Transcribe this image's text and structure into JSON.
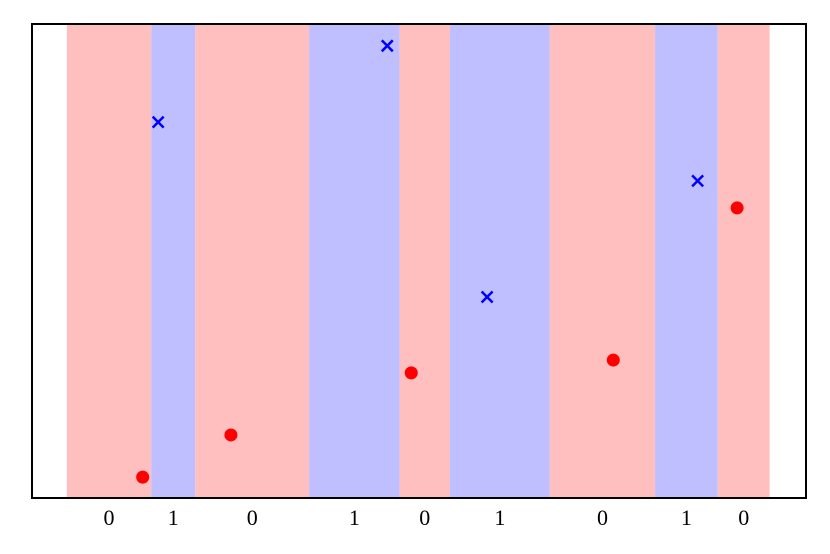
{
  "chart_data": {
    "type": "scatter",
    "xlim": [
      0,
      1
    ],
    "ylim": [
      0,
      1
    ],
    "categories": [
      "0",
      "1",
      "0",
      "1",
      "0",
      "1",
      "0",
      "1",
      "0"
    ],
    "band_edges": [
      0.045,
      0.154,
      0.211,
      0.358,
      0.475,
      0.54,
      0.669,
      0.805,
      0.886,
      0.953
    ],
    "band_colors": {
      "0": "#ffbfbf",
      "1": "#bfbfff"
    },
    "series": [
      {
        "color": "#ff0000",
        "marker": "circle",
        "x": [
          0.143,
          0.257,
          0.49,
          0.751,
          0.911
        ],
        "values": [
          0.044,
          0.133,
          0.264,
          0.291,
          0.612
        ]
      },
      {
        "color": "#0000ff",
        "marker": "x",
        "x": [
          0.163,
          0.459,
          0.588,
          0.86
        ],
        "values": [
          0.793,
          0.954,
          0.424,
          0.669
        ]
      }
    ]
  }
}
